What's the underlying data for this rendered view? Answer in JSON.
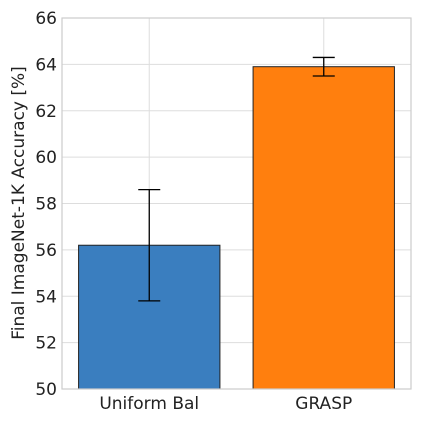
{
  "chart_data": {
    "type": "bar",
    "categories": [
      "Uniform Bal",
      "GRASP"
    ],
    "values": [
      56.2,
      63.9
    ],
    "errors": [
      2.4,
      0.4
    ],
    "colors": [
      "#3a7ebf",
      "#ff7f0e"
    ],
    "ylabel": "Final ImageNet-1K Accuracy [%]",
    "xlabel": "",
    "ylim": [
      50,
      66
    ],
    "yticks": [
      "50",
      "52",
      "54",
      "56",
      "58",
      "60",
      "62",
      "64",
      "66"
    ],
    "grid": true
  }
}
